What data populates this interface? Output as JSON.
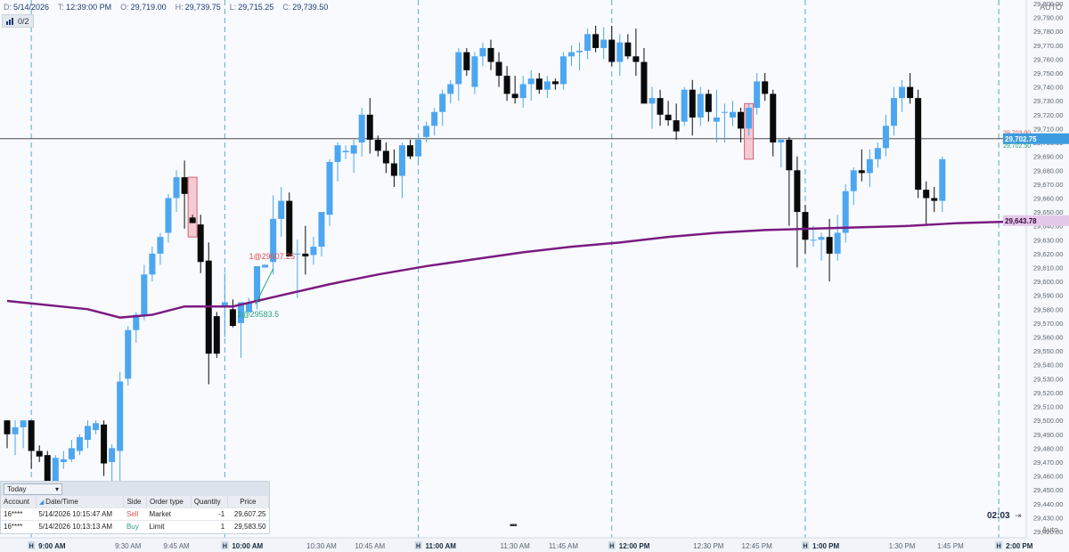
{
  "header": {
    "date_key": "D:",
    "date": "5/14/2026",
    "time_key": "T:",
    "time": "12:39:00 PM",
    "open_key": "O:",
    "open": "29,719.00",
    "high_key": "H:",
    "high": "29,739.75",
    "low_key": "L:",
    "low": "29,715.25",
    "close_key": "C:",
    "close": "29,739.50"
  },
  "position_button": {
    "label": "0/2"
  },
  "auto_top": "AUTO",
  "auto_bottom": "Auto",
  "clock": {
    "value": "02:03"
  },
  "orders_panel": {
    "filter_value": "Today",
    "columns": [
      "Account",
      "Date/Time",
      "Side",
      "Order type",
      "Quantity",
      "Price"
    ],
    "rows": [
      {
        "account": "16****",
        "datetime": "5/14/2026 10:15:47 AM",
        "side": "Sell",
        "type": "Market",
        "qty": "-1",
        "price": "29,607.25"
      },
      {
        "account": "16****",
        "datetime": "5/14/2026 10:13:13 AM",
        "side": "Buy",
        "type": "Limit",
        "qty": "1",
        "price": "29,583.50"
      }
    ]
  },
  "colors": {
    "up": "#4da6f0",
    "down": "#0a0a0a",
    "ma": "#7a1a80",
    "sell": "#e05050",
    "buy": "#2aa27e",
    "session": "#5aa9d6",
    "bg": "#f8fafe"
  },
  "chart_data": {
    "type": "candlestick",
    "y_ticks": [
      "29,800.00",
      "29,790.00",
      "29,780.00",
      "29,770.00",
      "29,760.00",
      "29,750.00",
      "29,740.00",
      "29,730.00",
      "29,720.00",
      "29,710.00",
      "29,700.00",
      "29,690.00",
      "29,680.00",
      "29,670.00",
      "29,660.00",
      "29,650.00",
      "29,640.00",
      "29,630.00",
      "29,620.00",
      "29,610.00",
      "29,600.00",
      "29,590.00",
      "29,580.00",
      "29,570.00",
      "29,560.00",
      "29,550.00",
      "29,540.00",
      "29,530.00",
      "29,520.00",
      "29,510.00",
      "29,500.00",
      "29,490.00",
      "29,480.00",
      "29,470.00",
      "29,460.00",
      "29,450.00",
      "29,440.00",
      "29,430.00",
      "29,420.00"
    ],
    "ylim": [
      29420,
      29800
    ],
    "x_labels": [
      {
        "label": "9:00 AM",
        "session": true,
        "t": 3
      },
      {
        "label": "9:30 AM",
        "session": false,
        "t": 15
      },
      {
        "label": "9:45 AM",
        "session": false,
        "t": 21
      },
      {
        "label": "10:00 AM",
        "session": true,
        "t": 27
      },
      {
        "label": "10:30 AM",
        "session": false,
        "t": 39
      },
      {
        "label": "10:45 AM",
        "session": false,
        "t": 45
      },
      {
        "label": "11:00 AM",
        "session": true,
        "t": 51
      },
      {
        "label": "11:30 AM",
        "session": false,
        "t": 63
      },
      {
        "label": "11:45 AM",
        "session": false,
        "t": 69
      },
      {
        "label": "12:00 PM",
        "session": true,
        "t": 75
      },
      {
        "label": "12:30 PM",
        "session": false,
        "t": 87
      },
      {
        "label": "12:45 PM",
        "session": false,
        "t": 93
      },
      {
        "label": "1:00 PM",
        "session": true,
        "t": 99
      },
      {
        "label": "1:30 PM",
        "session": false,
        "t": 111
      },
      {
        "label": "1:45 PM",
        "session": false,
        "t": 117
      },
      {
        "label": "2:00 PM",
        "session": true,
        "t": 123
      }
    ],
    "session_marker": "H",
    "price_badges": [
      {
        "text": "29,703.00",
        "value": 29703.0,
        "color": "#e05050",
        "style": "text"
      },
      {
        "text": "29,702.75",
        "value": 29702.75,
        "color": "#3d9be0",
        "style": "box"
      },
      {
        "text": "29,702.50",
        "value": 29702.5,
        "color": "#2aa27e",
        "style": "text"
      },
      {
        "text": "29,643.78",
        "value": 29643.78,
        "color": "#7a1a80",
        "style": "box"
      }
    ],
    "horizontal_line": 29702.75,
    "trade_labels": [
      {
        "text": "1@29607.25",
        "value": 29607.25,
        "t": 31,
        "side": "sell"
      },
      {
        "text": "1@29583.5",
        "value": 29583.5,
        "t": 31,
        "side": "buy"
      }
    ],
    "candles": [
      [
        29500,
        29500,
        29480,
        29490
      ],
      [
        29490,
        29500,
        29475,
        29495
      ],
      [
        29495,
        29500,
        29480,
        29500
      ],
      [
        29500,
        29500,
        29465,
        29478
      ],
      [
        29478,
        29482,
        29470,
        29474
      ],
      [
        29475,
        29478,
        29450,
        29455
      ],
      [
        29455,
        29475,
        29455,
        29473
      ],
      [
        29470,
        29478,
        29465,
        29472
      ],
      [
        29472,
        29486,
        29470,
        29480
      ],
      [
        29478,
        29490,
        29475,
        29488
      ],
      [
        29486,
        29500,
        29480,
        29496
      ],
      [
        29493,
        29500,
        29490,
        29498
      ],
      [
        29497,
        29500,
        29460,
        29469
      ],
      [
        29470,
        29483,
        29455,
        29480
      ],
      [
        29478,
        29535,
        29455,
        29528
      ],
      [
        29530,
        29568,
        29525,
        29565
      ],
      [
        29565,
        29578,
        29556,
        29576
      ],
      [
        29576,
        29612,
        29572,
        29605
      ],
      [
        29605,
        29625,
        29600,
        29620
      ],
      [
        29620,
        29635,
        29612,
        29632
      ],
      [
        29635,
        29663,
        29628,
        29660
      ],
      [
        29660,
        29680,
        29650,
        29675
      ],
      [
        29675,
        29687,
        29638,
        29663
      ],
      [
        29646,
        29648,
        29642,
        29642
      ],
      [
        29641,
        29648,
        29606,
        29614
      ],
      [
        29615,
        29628,
        29526,
        29548
      ],
      [
        29575,
        29578,
        29545,
        29548
      ],
      [
        29582,
        29606,
        29560,
        29585
      ],
      [
        29580,
        29587,
        29567,
        29568
      ],
      [
        29570,
        29585,
        29545,
        29585
      ],
      [
        29578,
        29588,
        29580,
        29585
      ],
      [
        29585,
        29610,
        29580,
        29611
      ],
      [
        29610,
        29612,
        29610,
        29612
      ],
      [
        29614,
        29662,
        29605,
        29645
      ],
      [
        29645,
        29668,
        29632,
        29658
      ],
      [
        29658,
        29664,
        29618,
        29618
      ],
      [
        29620,
        29630,
        29588,
        29620
      ],
      [
        29620,
        29640,
        29605,
        29618
      ],
      [
        29619,
        29632,
        29612,
        29625
      ],
      [
        29625,
        29650,
        29618,
        29650
      ],
      [
        29648,
        29688,
        29640,
        29686
      ],
      [
        29686,
        29700,
        29672,
        29698
      ],
      [
        29693,
        29698,
        29688,
        29694
      ],
      [
        29692,
        29702,
        29678,
        29698
      ],
      [
        29700,
        29725,
        29690,
        29720
      ],
      [
        29720,
        29732,
        29692,
        29702
      ],
      [
        29702,
        29705,
        29690,
        29694
      ],
      [
        29694,
        29700,
        29678,
        29685
      ],
      [
        29685,
        29695,
        29668,
        29676
      ],
      [
        29676,
        29700,
        29660,
        29698
      ],
      [
        29698,
        29702,
        29688,
        29690
      ],
      [
        29690,
        29705,
        29685,
        29702
      ],
      [
        29704,
        29715,
        29700,
        29712
      ],
      [
        29712,
        29725,
        29705,
        29722
      ],
      [
        29722,
        29738,
        29712,
        29735
      ],
      [
        29735,
        29745,
        29728,
        29742
      ],
      [
        29742,
        29768,
        29730,
        29765
      ],
      [
        29765,
        29768,
        29748,
        29752
      ],
      [
        29740,
        29765,
        29735,
        29762
      ],
      [
        29762,
        29772,
        29755,
        29768
      ],
      [
        29768,
        29774,
        29752,
        29758
      ],
      [
        29758,
        29765,
        29740,
        29748
      ],
      [
        29748,
        29755,
        29730,
        29735
      ],
      [
        29735,
        29748,
        29728,
        29732
      ],
      [
        29732,
        29748,
        29725,
        29742
      ],
      [
        29742,
        29752,
        29730,
        29746
      ],
      [
        29746,
        29750,
        29735,
        29738
      ],
      [
        29738,
        29748,
        29732,
        29744
      ],
      [
        29744,
        29746,
        29738,
        29742
      ],
      [
        29742,
        29765,
        29738,
        29762
      ],
      [
        29762,
        29770,
        29755,
        29765
      ],
      [
        29765,
        29772,
        29752,
        29766
      ],
      [
        29766,
        29782,
        29760,
        29778
      ],
      [
        29778,
        29784,
        29765,
        29768
      ],
      [
        29768,
        29783,
        29760,
        29774
      ],
      [
        29774,
        29784,
        29755,
        29758
      ],
      [
        29758,
        29778,
        29748,
        29772
      ],
      [
        29772,
        29778,
        29760,
        29762
      ],
      [
        29762,
        29782,
        29748,
        29758
      ],
      [
        29758,
        29768,
        29730,
        29728
      ],
      [
        29728,
        29740,
        29710,
        29732
      ],
      [
        29732,
        29738,
        29712,
        29720
      ],
      [
        29720,
        29730,
        29712,
        29716
      ],
      [
        29716,
        29728,
        29702,
        29708
      ],
      [
        29715,
        29740,
        29712,
        29738
      ],
      [
        29738,
        29745,
        29705,
        29718
      ],
      [
        29718,
        29740,
        29712,
        29735
      ],
      [
        29735,
        29738,
        29715,
        29722
      ],
      [
        29715,
        29738,
        29700,
        29718
      ],
      [
        29722,
        29728,
        29700,
        29722
      ],
      [
        29718,
        29730,
        29712,
        29722
      ],
      [
        29722,
        29725,
        29700,
        29710
      ],
      [
        29710,
        29728,
        29705,
        29725
      ],
      [
        29725,
        29750,
        29720,
        29744
      ],
      [
        29744,
        29750,
        29730,
        29735
      ],
      [
        29735,
        29738,
        29690,
        29700
      ],
      [
        29700,
        29702,
        29682,
        29702
      ],
      [
        29702,
        29704,
        29640,
        29680
      ],
      [
        29680,
        29690,
        29610,
        29650
      ],
      [
        29650,
        29655,
        29620,
        29630
      ],
      [
        29630,
        29640,
        29625,
        29630
      ],
      [
        29630,
        29635,
        29615,
        29632
      ],
      [
        29632,
        29645,
        29600,
        29620
      ],
      [
        29620,
        29648,
        29615,
        29635
      ],
      [
        29635,
        29670,
        29628,
        29665
      ],
      [
        29665,
        29682,
        29655,
        29680
      ],
      [
        29680,
        29695,
        29672,
        29678
      ],
      [
        29678,
        29695,
        29668,
        29688
      ],
      [
        29688,
        29700,
        29682,
        29696
      ],
      [
        29696,
        29720,
        29690,
        29712
      ],
      [
        29712,
        29740,
        29705,
        29732
      ],
      [
        29732,
        29745,
        29722,
        29740
      ],
      [
        29740,
        29750,
        29728,
        29732
      ],
      [
        29732,
        29738,
        29660,
        29666
      ],
      [
        29666,
        29672,
        29640,
        29660
      ],
      [
        29660,
        29668,
        29650,
        29658
      ],
      [
        29658,
        29690,
        29650,
        29688
      ]
    ],
    "moving_average": {
      "name": "",
      "points": [
        [
          0,
          29586
        ],
        [
          10,
          29580
        ],
        [
          14,
          29574
        ],
        [
          18,
          29576
        ],
        [
          22,
          29582
        ],
        [
          28,
          29582
        ],
        [
          34,
          29590
        ],
        [
          40,
          29598
        ],
        [
          46,
          29605
        ],
        [
          52,
          29611
        ],
        [
          58,
          29616
        ],
        [
          64,
          29621
        ],
        [
          70,
          29625
        ],
        [
          76,
          29628
        ],
        [
          82,
          29632
        ],
        [
          88,
          29635
        ],
        [
          94,
          29637
        ],
        [
          100,
          29638
        ],
        [
          106,
          29639
        ],
        [
          112,
          29640
        ],
        [
          118,
          29642
        ],
        [
          124,
          29643
        ]
      ]
    }
  }
}
